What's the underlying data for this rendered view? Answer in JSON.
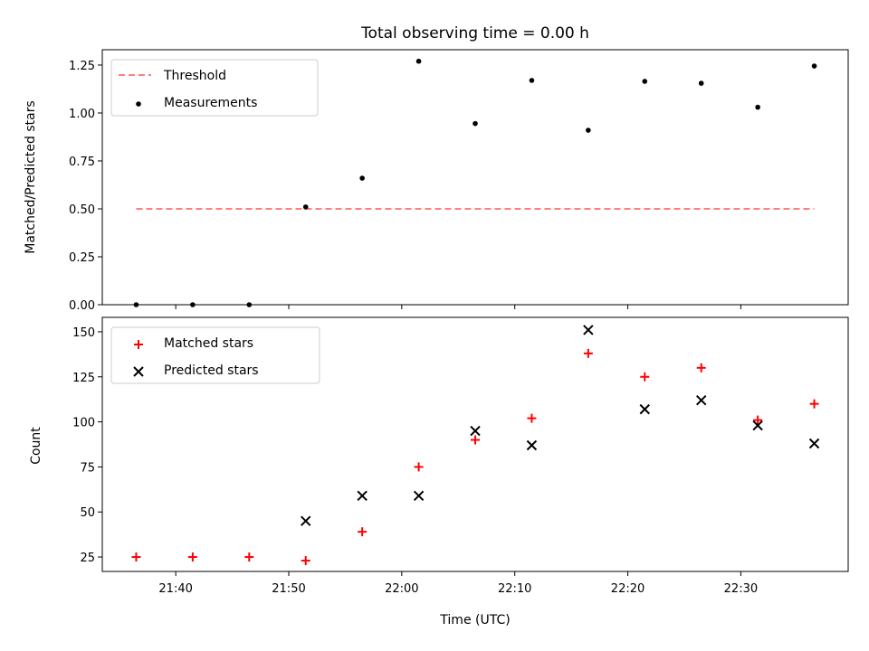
{
  "title": "Total observing time = 0.00 h",
  "chart_data": [
    {
      "type": "line",
      "panel": "top",
      "ylabel": "Matched/Predicted stars",
      "xlabel": "",
      "ylim": [
        0,
        1.33
      ],
      "yticks": [
        0.0,
        0.25,
        0.5,
        0.75,
        1.0,
        1.25
      ],
      "ytick_labels": [
        "0.00",
        "0.25",
        "0.50",
        "0.75",
        "1.00",
        "1.25"
      ],
      "legend_position": "top-left",
      "series": [
        {
          "name": "Threshold",
          "kind": "line",
          "style": "dashed",
          "color": "#ff7f7f",
          "x": [
            "21:36:30",
            "22:36:30"
          ],
          "y": [
            0.5,
            0.5
          ]
        },
        {
          "name": "Measurements",
          "kind": "scatter",
          "marker": "dot",
          "color": "#000000",
          "x": [
            "21:36:30",
            "21:41:30",
            "21:46:30",
            "21:51:30",
            "21:56:30",
            "22:01:30",
            "22:06:30",
            "22:11:30",
            "22:16:30",
            "22:21:30",
            "22:26:30",
            "22:31:30",
            "22:36:30"
          ],
          "y": [
            0.0,
            0.0,
            0.0,
            0.51,
            0.66,
            1.27,
            0.945,
            1.17,
            0.91,
            1.165,
            1.155,
            1.03,
            1.245
          ]
        }
      ]
    },
    {
      "type": "scatter",
      "panel": "bottom",
      "ylabel": "Count",
      "xlabel": "Time (UTC)",
      "ylim": [
        17,
        158
      ],
      "yticks": [
        25,
        50,
        75,
        100,
        125,
        150
      ],
      "ytick_labels": [
        "25",
        "50",
        "75",
        "100",
        "125",
        "150"
      ],
      "legend_position": "top-left",
      "series": [
        {
          "name": "Matched stars",
          "marker": "plus",
          "color": "#ff0000",
          "x": [
            "21:36:30",
            "21:41:30",
            "21:46:30",
            "21:51:30",
            "21:56:30",
            "22:01:30",
            "22:06:30",
            "22:11:30",
            "22:16:30",
            "22:21:30",
            "22:26:30",
            "22:31:30",
            "22:36:30"
          ],
          "y": [
            25,
            25,
            25,
            23,
            39,
            75,
            90,
            102,
            138,
            125,
            130,
            101,
            110
          ]
        },
        {
          "name": "Predicted stars",
          "marker": "x",
          "color": "#000000",
          "x": [
            "21:36:30",
            "21:41:30",
            "21:46:30",
            "21:51:30",
            "21:56:30",
            "22:01:30",
            "22:06:30",
            "22:11:30",
            "22:16:30",
            "22:21:30",
            "22:26:30",
            "22:31:30",
            "22:36:30"
          ],
          "y": [
            null,
            null,
            null,
            45,
            59,
            59,
            95,
            87,
            151,
            107,
            112,
            98,
            88
          ]
        }
      ]
    }
  ],
  "x_axis": {
    "range": [
      "21:33:30",
      "22:39:30"
    ],
    "ticks": [
      "21:40:00",
      "21:50:00",
      "22:00:00",
      "22:10:00",
      "22:20:00",
      "22:30:00"
    ],
    "tick_labels": [
      "21:40",
      "21:50",
      "22:00",
      "22:10",
      "22:20",
      "22:30"
    ]
  }
}
